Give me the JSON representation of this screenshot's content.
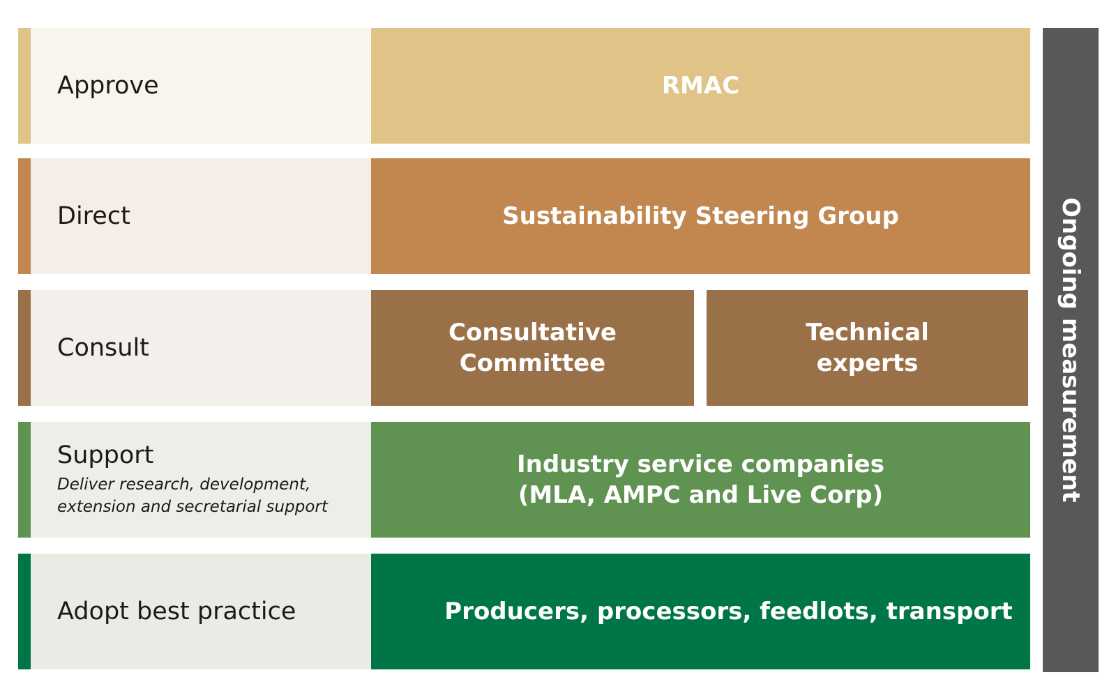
{
  "rows": [
    {
      "label": "Approve",
      "box": "RMAC",
      "accent": "#dfc387",
      "label_bg": "#f9f4ec",
      "box_bg": "#dfc387"
    },
    {
      "label": "Direct",
      "box": "Sustainability Steering Group",
      "accent": "#c1874f",
      "label_bg": "#f5ede6",
      "box_bg": "#c1874f"
    },
    {
      "label": "Consult",
      "boxes": [
        "Consultative Committee",
        "Technical experts"
      ],
      "accent": "#9a7048",
      "label_bg": "#f3f0ec",
      "box_bg": "#9a7048"
    },
    {
      "label": "Support",
      "sublabel": [
        "Deliver research, development,",
        "extension and secretarial support"
      ],
      "box": [
        "Industry service companies",
        "(MLA, AMPC and Live Corp)"
      ],
      "accent": "#609352",
      "label_bg": "#edeeea",
      "box_bg": "#609352"
    },
    {
      "label": "Adopt best practice",
      "box": "Producers, processors, feedlots, transport",
      "accent": "#007546",
      "label_bg": "#eaebe5",
      "box_bg": "#007546"
    }
  ],
  "side_label": "Ongoing measurement",
  "side_color": "#58585a"
}
